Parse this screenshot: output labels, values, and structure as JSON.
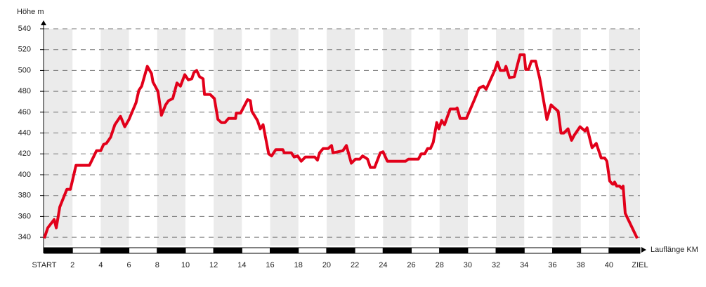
{
  "chart_data": {
    "type": "line",
    "y_axis_label": "Höhe m",
    "x_axis_label": "Lauflänge KM",
    "xlim": [
      0,
      42.195
    ],
    "ylim": [
      332,
      540
    ],
    "yticks": [
      340,
      360,
      380,
      400,
      420,
      440,
      460,
      480,
      500,
      520,
      540
    ],
    "xticks": [
      {
        "value": 0,
        "label": "START"
      },
      2,
      4,
      6,
      8,
      10,
      12,
      14,
      16,
      18,
      20,
      22,
      24,
      26,
      28,
      30,
      32,
      34,
      36,
      38,
      40,
      {
        "value": 42.195,
        "label": "ZIEL"
      }
    ],
    "grid": true,
    "series": [
      {
        "color": "#e2001a",
        "x": [
          0,
          0.25,
          0.7,
          0.85,
          1.1,
          1.6,
          1.85,
          2.25,
          3.2,
          3.7,
          4.0,
          4.2,
          4.4,
          4.7,
          5.0,
          5.4,
          5.7,
          6.0,
          6.5,
          6.7,
          6.9,
          7.3,
          7.6,
          7.7,
          8.05,
          8.3,
          8.6,
          8.8,
          9.1,
          9.4,
          9.65,
          9.95,
          10.2,
          10.45,
          10.6,
          10.8,
          11.0,
          11.25,
          11.35,
          11.75,
          12.05,
          12.3,
          12.55,
          12.8,
          13.05,
          13.55,
          13.6,
          13.9,
          14.4,
          14.6,
          14.7,
          15.1,
          15.3,
          15.5,
          15.9,
          16.1,
          16.4,
          16.9,
          17.0,
          17.5,
          17.7,
          17.95,
          18.2,
          18.5,
          19.15,
          19.35,
          19.5,
          19.75,
          20.1,
          20.35,
          20.45,
          21.15,
          21.4,
          21.75,
          22.05,
          22.35,
          22.55,
          22.9,
          23.1,
          23.4,
          23.8,
          24.0,
          24.3,
          25.6,
          25.8,
          26.5,
          26.7,
          26.95,
          27.15,
          27.35,
          27.55,
          27.8,
          27.95,
          28.15,
          28.35,
          28.75,
          29.15,
          29.25,
          29.45,
          29.9,
          30.5,
          30.8,
          31.1,
          31.3,
          31.6,
          31.9,
          32.1,
          32.3,
          32.6,
          32.7,
          32.95,
          33.3,
          33.7,
          34.0,
          34.1,
          34.3,
          34.5,
          34.8,
          35.1,
          35.6,
          35.9,
          36.05,
          36.4,
          36.6,
          36.8,
          37.1,
          37.35,
          37.55,
          37.95,
          38.3,
          38.45,
          38.8,
          39.1,
          39.45,
          39.7,
          39.85,
          40.05,
          40.25,
          40.35,
          40.4,
          40.55,
          40.75,
          40.9,
          41.0,
          41.15,
          42.0
        ],
        "values": [
          339,
          349,
          357,
          349,
          369,
          386,
          386,
          409,
          409,
          423,
          423,
          429,
          430,
          436,
          448,
          456,
          446,
          453,
          469,
          481,
          485,
          504,
          497,
          489,
          480,
          457,
          467,
          471,
          473,
          488,
          485,
          496,
          491,
          492,
          498,
          500,
          494,
          492,
          477,
          477,
          473,
          453,
          450,
          450,
          454,
          454,
          459,
          459,
          472,
          471,
          461,
          452,
          444,
          448,
          420,
          418,
          424,
          424,
          421,
          421,
          417,
          418,
          413,
          417,
          417,
          414,
          421,
          425,
          425,
          428,
          421,
          423,
          428,
          411,
          415,
          415,
          418,
          415,
          407,
          407,
          421,
          422,
          413,
          413,
          415,
          415,
          420,
          420,
          425,
          425,
          431,
          450,
          444,
          452,
          448,
          463,
          463,
          464,
          454,
          454,
          473,
          483,
          485,
          482,
          491,
          500,
          508,
          500,
          500,
          504,
          493,
          494,
          515,
          515,
          501,
          501,
          509,
          509,
          492,
          453,
          467,
          465,
          461,
          440,
          440,
          444,
          433,
          438,
          446,
          442,
          445,
          426,
          430,
          416,
          416,
          413,
          394,
          391,
          391,
          393,
          389,
          389,
          387,
          389,
          363,
          339
        ]
      }
    ]
  }
}
